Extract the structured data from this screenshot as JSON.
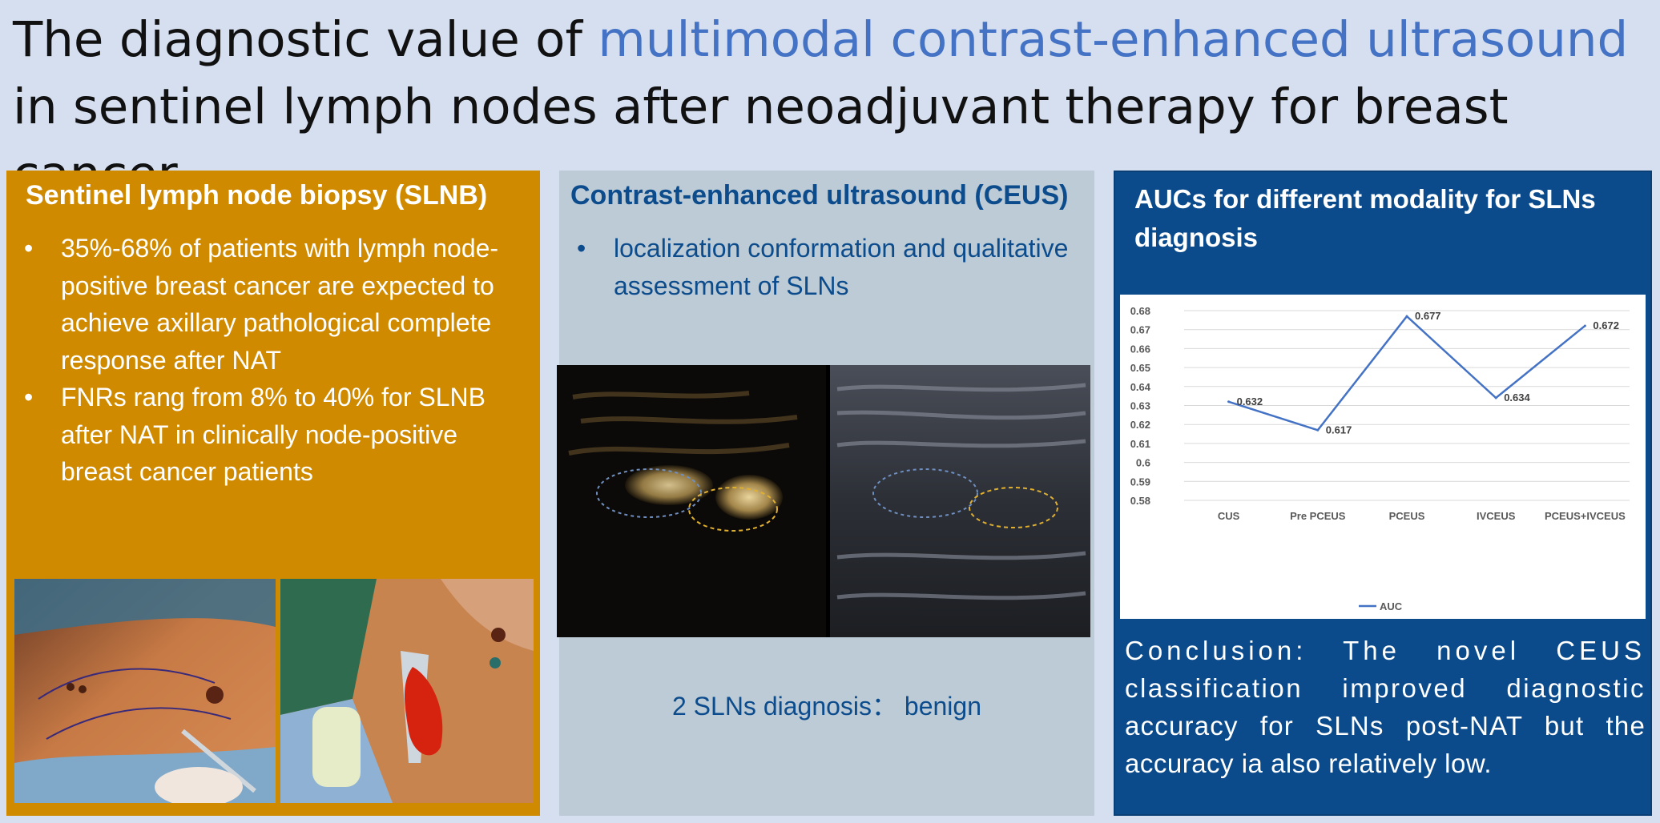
{
  "title": {
    "part1": "The diagnostic value of ",
    "highlight": "multimodal contrast-enhanced ultrasound",
    "part2": " in sentinel lymph nodes after neoadjuvant therapy for breast cancer"
  },
  "slnb": {
    "heading": "Sentinel lymph node biopsy (SLNB)",
    "bullets": [
      "35%-68% of patients with lymph node-positive breast cancer are expected to achieve axillary pathological complete response after NAT",
      "FNRs rang from 8% to 40% for SLNB after NAT in clinically node-positive breast cancer patients"
    ]
  },
  "ceus": {
    "heading": "Contrast-enhanced ultrasound (CEUS)",
    "bullets": [
      "localization conformation and qualitative assessment of SLNs"
    ],
    "diagnosis": "2 SLNs diagnosis：  benign"
  },
  "auc": {
    "heading": "AUCs for different modality for SLNs diagnosis",
    "conclusion_lines": [
      "Conclusion: The novel CEUS",
      "classification improved diagnostic",
      "accuracy for SLNs post-NAT but the",
      "accuracy ia also relatively low."
    ]
  },
  "colors": {
    "title_highlight": "#4472c4",
    "slnb_panel": "#d08a00",
    "ceus_panel": "#bccbd6",
    "auc_panel": "#0b4a8b",
    "series": "#4472c4"
  },
  "chart_data": {
    "type": "line",
    "categories": [
      "CUS",
      "Pre PCEUS",
      "PCEUS",
      "IVCEUS",
      "PCEUS+IVCEUS"
    ],
    "series": [
      {
        "name": "AUC",
        "values": [
          0.632,
          0.617,
          0.677,
          0.634,
          0.672
        ]
      }
    ],
    "data_labels": [
      "0.632",
      "0.617",
      "0.677",
      "0.634",
      "0.672"
    ],
    "yticks": [
      "0.58",
      "0.59",
      "0.6",
      "0.61",
      "0.62",
      "0.63",
      "0.64",
      "0.65",
      "0.66",
      "0.67",
      "0.68"
    ],
    "ylim": [
      0.58,
      0.68
    ],
    "grid": true,
    "legend": "bottom"
  }
}
